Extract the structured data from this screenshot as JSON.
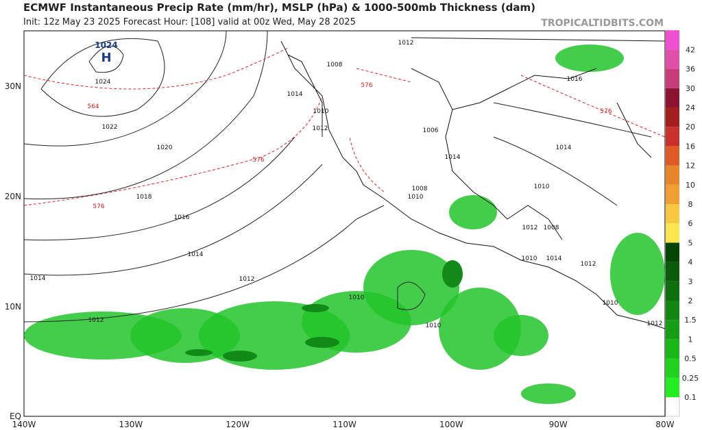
{
  "header": {
    "title": "ECMWF Instantaneous Precip Rate (mm/hr), MSLP (hPa) & 1000-500mb Thickness (dam)",
    "subtitle": "Init: 12z May 23 2025   Forecast Hour: [108]   valid at 00z Wed, May 28 2025",
    "brand": "TROPICALTIDBITS.COM"
  },
  "map": {
    "lat_labels": [
      "30N",
      "20N",
      "10N",
      "EQ"
    ],
    "lon_labels": [
      "140W",
      "130W",
      "120W",
      "110W",
      "100W",
      "90W",
      "80W"
    ],
    "high": {
      "pressure": "1024",
      "letter": "H"
    },
    "isobar_labels": [
      "1024",
      "1022",
      "1020",
      "1018",
      "1016",
      "1014",
      "1014",
      "1012",
      "1012",
      "1012",
      "1014",
      "1010",
      "1012",
      "1008",
      "1006",
      "1010",
      "1010",
      "1008",
      "1014",
      "1016",
      "1014",
      "1010",
      "1010",
      "1012",
      "1008",
      "1010",
      "1014",
      "1012",
      "1010",
      "1012"
    ],
    "thickness_labels": [
      "564",
      "576",
      "576",
      "576",
      "576"
    ]
  },
  "colorbar": {
    "labels": [
      0.1,
      0.25,
      0.5,
      1,
      1.5,
      2,
      3,
      4,
      5,
      6,
      8,
      10,
      12,
      16,
      20,
      24,
      30,
      36,
      42
    ],
    "colors": [
      "#22ee22",
      "#1ed21e",
      "#19b819",
      "#159e15",
      "#118611",
      "#0d700d",
      "#095a09",
      "#054605",
      "#ffe650",
      "#f8c840",
      "#f0a032",
      "#e8842a",
      "#e05a28",
      "#c8322a",
      "#a41e1e",
      "#8c1432",
      "#c83c78",
      "#e050a8",
      "#f050d0",
      "#ff40ff"
    ]
  }
}
